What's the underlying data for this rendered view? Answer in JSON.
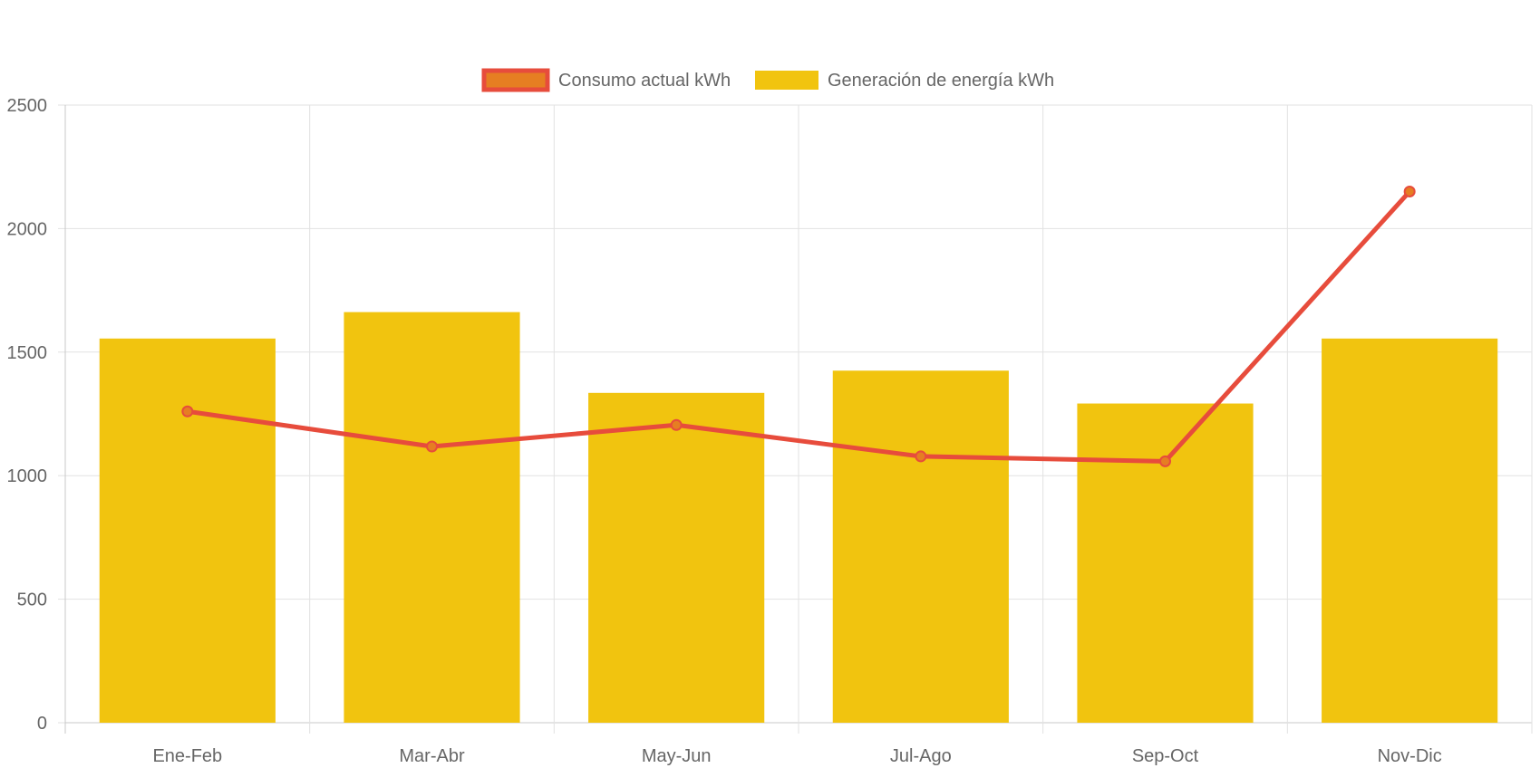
{
  "chart_data": {
    "type": "bar",
    "title": "",
    "xlabel": "",
    "ylabel": "",
    "categories": [
      "Ene-Feb",
      "Mar-Abr",
      "May-Jun",
      "Jul-Ago",
      "Sep-Oct",
      "Nov-Dic"
    ],
    "ylim": [
      0,
      2500
    ],
    "yticks": [
      0,
      500,
      1000,
      1500,
      2000,
      2500
    ],
    "grid": true,
    "legend_position": "top-center",
    "series": [
      {
        "name": "Consumo actual kWh",
        "type": "line",
        "color": "#e74c3c",
        "point_fill": "#e67e22",
        "values": [
          1260,
          1118,
          1205,
          1078,
          1058,
          2150
        ]
      },
      {
        "name": "Generación de energía kWh",
        "type": "bar",
        "color": "#f1c40f",
        "values": [
          1555,
          1662,
          1335,
          1425,
          1292,
          1555
        ]
      }
    ]
  }
}
